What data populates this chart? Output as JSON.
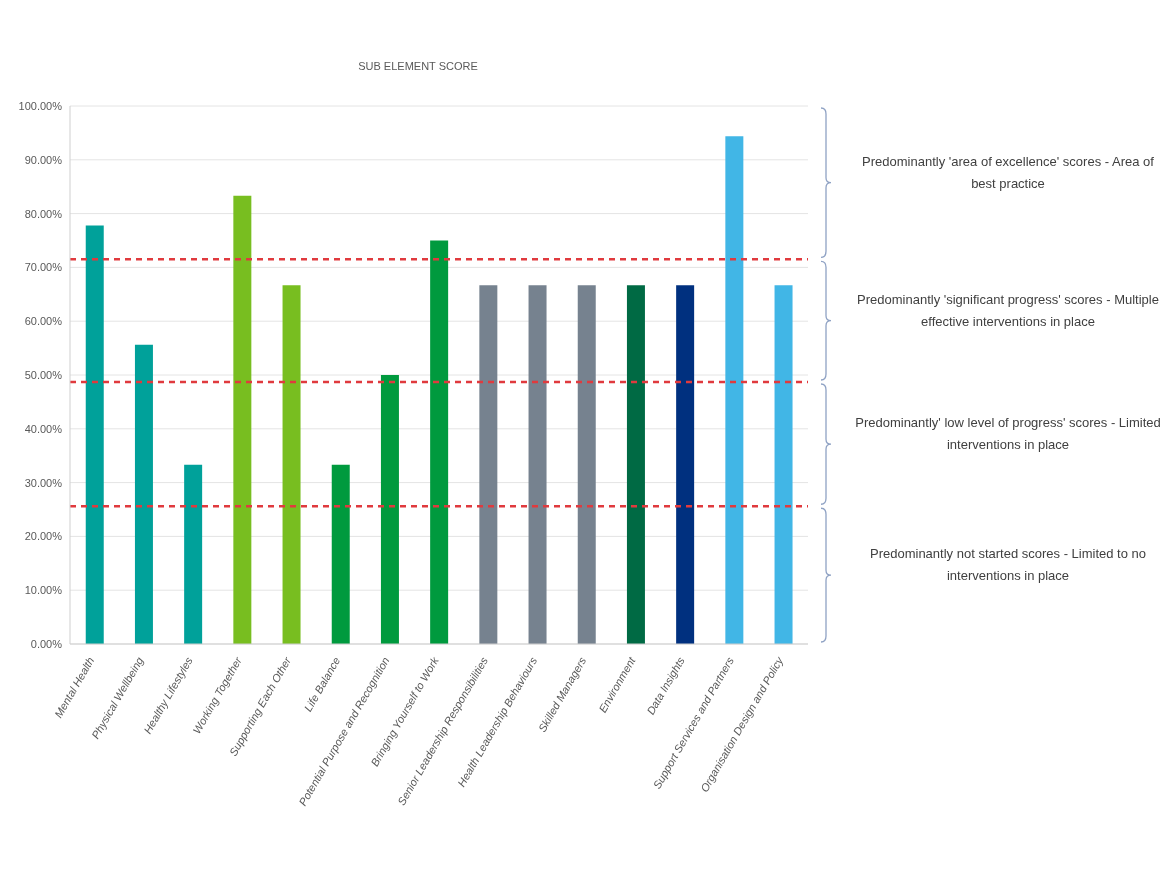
{
  "chart_data": {
    "type": "bar",
    "title": "SUB ELEMENT SCORE",
    "categories": [
      "Mental Health",
      "Physical Wellbeing",
      "Healthy Lifestyles",
      "Working Together",
      "Supporting Each Other",
      "Life Balance",
      "Potential Purpose and Recognition",
      "Bringing Yourself to Work",
      "Senior Leadership Responsibilities",
      "Health Leadership Behaviours",
      "Skilled Managers",
      "Environment",
      "Data Insights",
      "Support Services and Partners",
      "Organisation Design and Policy"
    ],
    "values": [
      77.8,
      55.6,
      33.3,
      83.3,
      66.7,
      33.3,
      50,
      75,
      66.7,
      66.7,
      66.7,
      66.7,
      66.7,
      94.4,
      66.7
    ],
    "colors": [
      "#00a19a",
      "#00a19a",
      "#00a19a",
      "#78be20",
      "#78be20",
      "#009a3e",
      "#009a3e",
      "#009a3e",
      "#76828f",
      "#76828f",
      "#76828f",
      "#006a44",
      "#00307f",
      "#41b6e6",
      "#41b6e6"
    ],
    "ylim": [
      0,
      100
    ],
    "yticks": [
      {
        "value": 0,
        "label": "0.00%"
      },
      {
        "value": 10,
        "label": "10.00%"
      },
      {
        "value": 20,
        "label": "20.00%"
      },
      {
        "value": 30,
        "label": "30.00%"
      },
      {
        "value": 40,
        "label": "40.00%"
      },
      {
        "value": 50,
        "label": "50.00%"
      },
      {
        "value": 60,
        "label": "60.00%"
      },
      {
        "value": 70,
        "label": "70.00%"
      },
      {
        "value": 80,
        "label": "80.00%"
      },
      {
        "value": 90,
        "label": "90.00%"
      },
      {
        "value": 100,
        "label": "100.00%"
      }
    ],
    "grid": "y",
    "ref_lines": [
      {
        "axis": "y",
        "value": 71.5,
        "color": "#e03a3e",
        "line_style": "dashed"
      },
      {
        "axis": "y",
        "value": 48.7,
        "color": "#e03a3e",
        "line_style": "dashed"
      },
      {
        "axis": "y",
        "value": 25.6,
        "color": "#e03a3e",
        "line_style": "dashed"
      }
    ],
    "annotations": [
      "Predominantly 'area of excellence' scores - Area of best practice",
      "Predominantly 'significant progress' scores - Multiple effective interventions in place",
      "Predominantly' low level of progress' scores - Limited interventions in place",
      "Predominantly not started scores - Limited to no interventions in place"
    ]
  }
}
